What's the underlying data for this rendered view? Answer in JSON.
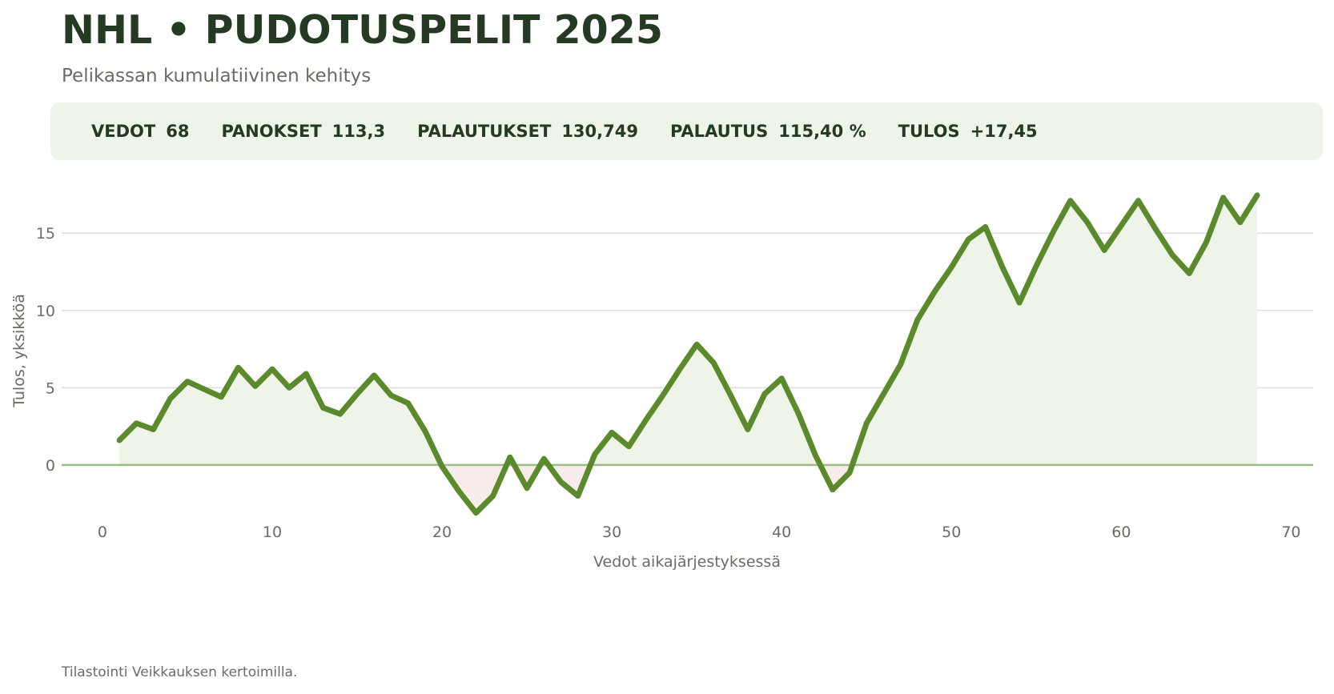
{
  "header": {
    "title": "NHL • PUDOTUSPELIT 2025",
    "subtitle": "Pelikassan kumulatiivinen kehitys"
  },
  "stats": [
    {
      "label": "VEDOT",
      "value": "68"
    },
    {
      "label": "PANOKSET",
      "value": "113,3"
    },
    {
      "label": "PALAUTUKSET",
      "value": "130,749"
    },
    {
      "label": "PALAUTUS",
      "value": "115,40 %"
    },
    {
      "label": "TULOS",
      "value": "+17,45"
    }
  ],
  "footer": "Tilastointi Veikkauksen kertoimilla.",
  "colors": {
    "line": "#5b8a2d",
    "fill_positive": "#eef4e7",
    "fill_negative": "#f7ece9",
    "zero_line": "#9dbb85",
    "grid": "#dddddd",
    "title": "#253a22",
    "muted": "#6b6b66"
  },
  "chart_data": {
    "type": "area",
    "xlabel": "Vedot aikajärjestyksessä",
    "ylabel": "Tulos, yksikköä",
    "xlim": [
      -2.4,
      71.3
    ],
    "ylim": [
      -4.2,
      19.0
    ],
    "xticks": [
      0,
      10,
      20,
      30,
      40,
      50,
      60,
      70
    ],
    "yticks": [
      0,
      5,
      10,
      15
    ],
    "grid": "horizontal",
    "legend": "none",
    "x": [
      1,
      2,
      3,
      4,
      5,
      6,
      7,
      8,
      9,
      10,
      11,
      12,
      13,
      14,
      15,
      16,
      17,
      18,
      19,
      20,
      21,
      22,
      23,
      24,
      25,
      26,
      27,
      28,
      29,
      30,
      31,
      32,
      33,
      34,
      35,
      36,
      37,
      38,
      39,
      40,
      41,
      42,
      43,
      44,
      45,
      46,
      47,
      48,
      49,
      50,
      51,
      52,
      53,
      54,
      55,
      56,
      57,
      58,
      59,
      60,
      61,
      62,
      63,
      64,
      65,
      66,
      67,
      68
    ],
    "series": [
      {
        "values": [
          1.6,
          2.7,
          2.3,
          4.3,
          5.4,
          4.9,
          4.4,
          6.3,
          5.1,
          6.2,
          5.0,
          5.9,
          3.7,
          3.3,
          4.6,
          5.8,
          4.5,
          4.0,
          2.2,
          -0.1,
          -1.7,
          -3.1,
          -2.0,
          0.5,
          -1.5,
          0.4,
          -1.1,
          -2.0,
          0.7,
          2.1,
          1.2,
          2.9,
          4.5,
          6.2,
          7.8,
          6.6,
          4.5,
          2.3,
          4.6,
          5.6,
          3.3,
          0.6,
          -1.6,
          -0.5,
          2.7,
          4.6,
          6.5,
          9.4,
          11.2,
          12.8,
          14.6,
          15.4,
          12.8,
          10.5,
          12.9,
          15.1,
          17.1,
          15.7,
          13.9,
          15.5,
          17.1,
          15.3,
          13.6,
          12.4,
          14.4,
          17.3,
          15.7,
          17.45
        ]
      }
    ]
  }
}
